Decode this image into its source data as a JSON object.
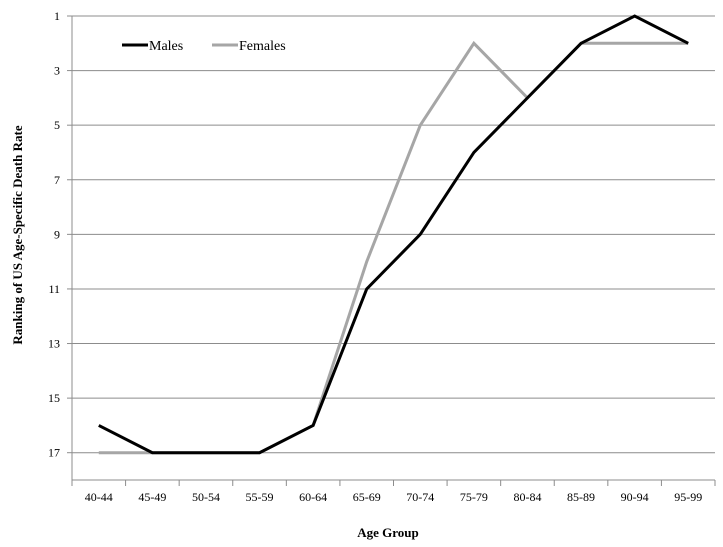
{
  "chart_data": {
    "type": "line",
    "title": "",
    "xlabel": "Age Group",
    "ylabel": "Ranking of US Age-Specific Death Rate",
    "categories": [
      "40-44",
      "45-49",
      "50-54",
      "55-59",
      "60-64",
      "65-69",
      "70-74",
      "75-79",
      "80-84",
      "85-89",
      "90-94",
      "95-99"
    ],
    "y_axis": {
      "inverted": true,
      "range": [
        1,
        18
      ],
      "ticks": [
        1,
        3,
        5,
        7,
        9,
        11,
        13,
        15,
        17
      ],
      "tick_labels": [
        "1",
        "3",
        "5",
        "7",
        "9",
        "11",
        "13",
        "15",
        "17"
      ]
    },
    "grid": "horizontal",
    "legend_placement": "top-left",
    "series": [
      {
        "name": "Males",
        "color": "#000000",
        "values": [
          16,
          17,
          17,
          17,
          16,
          11,
          9,
          6,
          4,
          2,
          1,
          2
        ]
      },
      {
        "name": "Females",
        "color": "#a6a6a6",
        "values": [
          17,
          17,
          17,
          17,
          16,
          10,
          5,
          2,
          4,
          2,
          2,
          2
        ]
      }
    ]
  }
}
